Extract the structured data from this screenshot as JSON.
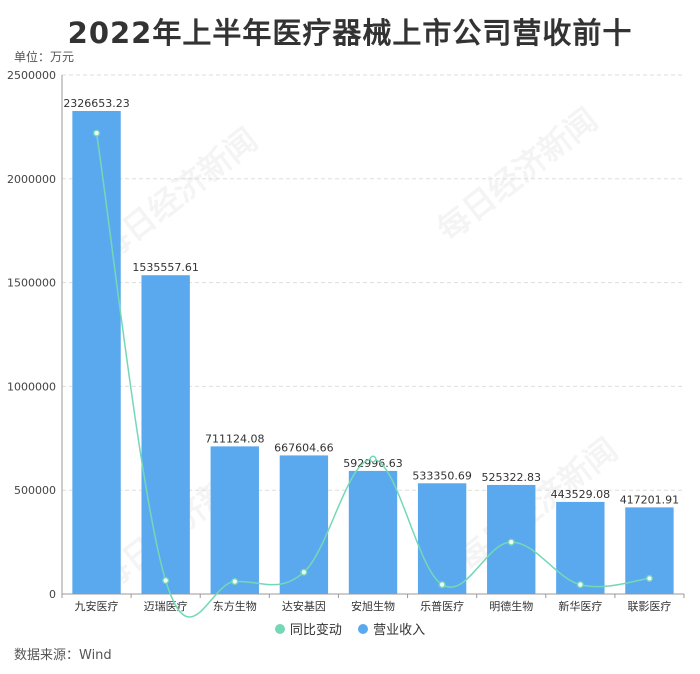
{
  "title": "2022年上半年医疗器械上市公司营收前十",
  "unit": "单位：万元",
  "source": "数据来源：Wind",
  "watermark": "每日经济新闻",
  "colors": {
    "bar": "#5aa9ee",
    "line": "#74d8b5",
    "axis": "#999999",
    "grid": "#dddddd"
  },
  "chart_data": {
    "type": "bar",
    "categories": [
      "九安医疗",
      "迈瑞医疗",
      "东方生物",
      "达安基因",
      "安旭生物",
      "乐普医疗",
      "明德生物",
      "新华医疗",
      "联影医疗"
    ],
    "series": [
      {
        "name": "营业收入",
        "type": "bar",
        "values": [
          2326653.23,
          1535557.61,
          711124.08,
          667604.66,
          592996.63,
          533350.69,
          525322.83,
          443529.08,
          417201.91
        ],
        "labels": [
          "2326653.23",
          "1535557.61",
          "711124.08",
          "667604.66",
          "592996.63",
          "533350.69",
          "525322.83",
          "443529.08",
          "417201.91"
        ]
      },
      {
        "name": "同比变动",
        "type": "line",
        "values": [
          2220000,
          65000,
          60000,
          105000,
          650000,
          45000,
          250000,
          45000,
          75000
        ]
      }
    ],
    "ylim": [
      0,
      2500000
    ],
    "yticks": [
      "0",
      "500000",
      "1000000",
      "1500000",
      "2000000",
      "2500000"
    ],
    "legend": [
      "同比变动",
      "营业收入"
    ],
    "legend_position": "bottom",
    "grid": true
  }
}
